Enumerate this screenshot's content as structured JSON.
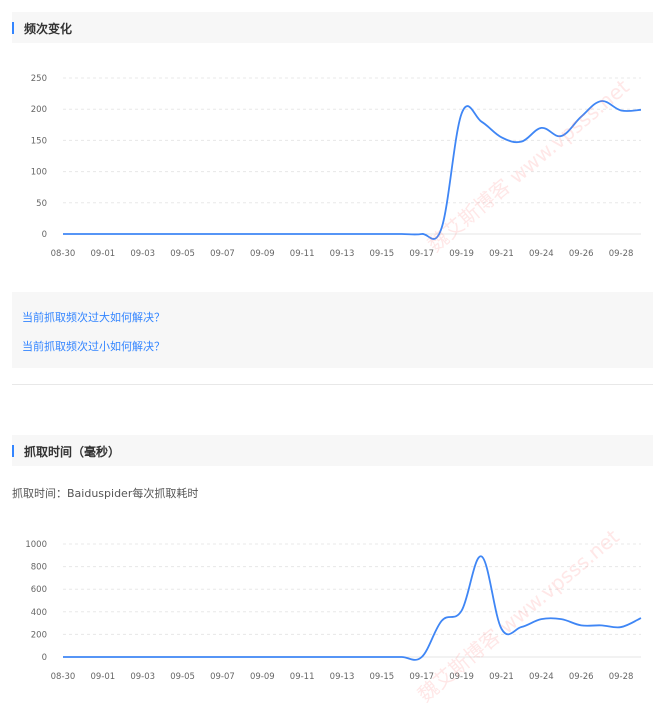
{
  "section1": {
    "title": "频次变化"
  },
  "links": [
    "当前抓取频次过大如何解决？",
    "当前抓取频次过小如何解决？"
  ],
  "section2": {
    "title": "抓取时间（毫秒）",
    "description": "抓取时间：Baiduspider每次抓取耗时"
  },
  "watermark": {
    "name": "魏艾斯博客",
    "url": "www.vpsss.net"
  },
  "colors": {
    "accent": "#3385ff",
    "line": "#3f86f5"
  },
  "chart_data": [
    {
      "type": "line",
      "title": "频次变化",
      "x": [
        "08-30",
        "08-31",
        "09-01",
        "09-02",
        "09-03",
        "09-04",
        "09-05",
        "09-06",
        "09-07",
        "09-08",
        "09-09",
        "09-10",
        "09-11",
        "09-12",
        "09-13",
        "09-14",
        "09-15",
        "09-16",
        "09-17",
        "09-18",
        "09-19",
        "09-20",
        "09-21",
        "09-22",
        "09-24",
        "09-25",
        "09-26",
        "09-27",
        "09-28",
        "09-29"
      ],
      "tick_labels": [
        "08-30",
        "09-01",
        "09-03",
        "09-05",
        "09-07",
        "09-09",
        "09-11",
        "09-13",
        "09-15",
        "09-17",
        "09-19",
        "09-21",
        "09-24",
        "09-26",
        "09-28"
      ],
      "values": [
        0,
        0,
        0,
        0,
        0,
        0,
        0,
        0,
        0,
        0,
        0,
        0,
        0,
        0,
        0,
        0,
        0,
        0,
        0,
        10,
        193,
        180,
        155,
        148,
        170,
        157,
        188,
        213,
        198,
        199
      ],
      "yticks": [
        0,
        50,
        100,
        150,
        200,
        250
      ],
      "ylim": [
        0,
        250
      ],
      "grid": true
    },
    {
      "type": "line",
      "title": "抓取时间（毫秒）",
      "x": [
        "08-30",
        "08-31",
        "09-01",
        "09-02",
        "09-03",
        "09-04",
        "09-05",
        "09-06",
        "09-07",
        "09-08",
        "09-09",
        "09-10",
        "09-11",
        "09-12",
        "09-13",
        "09-14",
        "09-15",
        "09-16",
        "09-17",
        "09-18",
        "09-19",
        "09-20",
        "09-21",
        "09-22",
        "09-24",
        "09-25",
        "09-26",
        "09-27",
        "09-28",
        "09-29"
      ],
      "tick_labels": [
        "08-30",
        "09-01",
        "09-03",
        "09-05",
        "09-07",
        "09-09",
        "09-11",
        "09-13",
        "09-15",
        "09-17",
        "09-19",
        "09-21",
        "09-24",
        "09-26",
        "09-28"
      ],
      "values": [
        0,
        0,
        0,
        0,
        0,
        0,
        0,
        0,
        0,
        0,
        0,
        0,
        0,
        0,
        0,
        0,
        0,
        0,
        0,
        320,
        410,
        890,
        250,
        265,
        335,
        335,
        280,
        280,
        265,
        345
      ],
      "yticks": [
        0,
        200,
        400,
        600,
        800,
        1000
      ],
      "ylim": [
        0,
        1000
      ],
      "grid": true
    }
  ]
}
